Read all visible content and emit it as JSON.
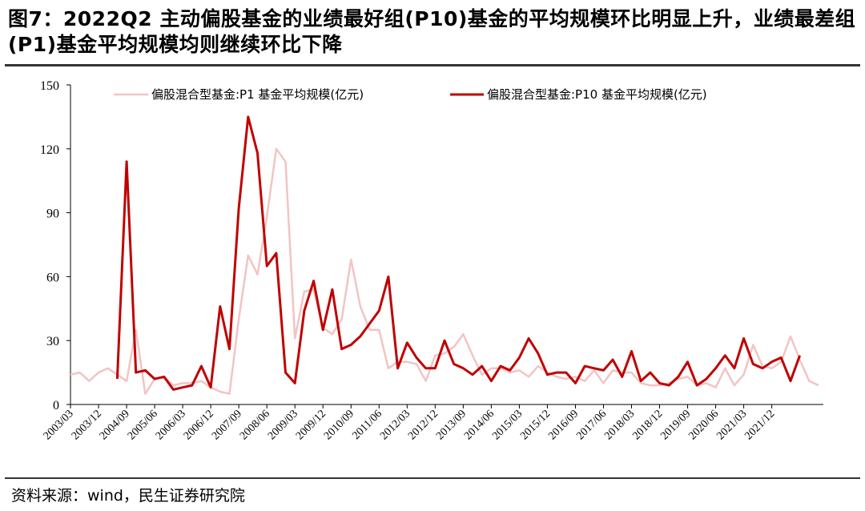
{
  "title": "图7：2022Q2  主动偏股基金的业绩最好组(P10)基金的平均规模环比明显上升，业绩最差组(P1)基金平均规模均则继续环比下降",
  "source": "资料来源：wind，民生证券研究院",
  "colors": {
    "p1": "#f2c4c4",
    "p10": "#c00000"
  },
  "chart_data": {
    "type": "line",
    "title": "图7：2022Q2  主动偏股基金的业绩最好组(P10)基金的平均规模环比明显上升，业绩最差组(P1)基金平均规模均则继续环比下降",
    "xlabel": "",
    "ylabel": "",
    "ylim": [
      0,
      150
    ],
    "yticks": [
      0,
      30,
      60,
      90,
      120,
      150
    ],
    "start": "2003/03",
    "step_months": 3,
    "xtick_labels": [
      "2003/03",
      "2003/12",
      "2004/09",
      "2005/06",
      "2006/03",
      "2006/12",
      "2007/09",
      "2008/06",
      "2009/03",
      "2009/12",
      "2010/09",
      "2011/06",
      "2012/03",
      "2012/12",
      "2013/09",
      "2014/06",
      "2015/03",
      "2015/12",
      "2016/09",
      "2017/06",
      "2018/03",
      "2018/12",
      "2019/09",
      "2020/06",
      "2021/03",
      "2021/12"
    ],
    "series": [
      {
        "name": "偏股混合型基金:P1 基金平均规模(亿元)",
        "color": "#f2c4c4",
        "values": [
          14,
          15,
          11,
          15,
          17,
          14,
          11,
          35,
          5,
          12,
          13,
          9,
          10,
          10,
          11,
          8,
          6,
          5,
          40,
          70,
          61,
          88,
          120,
          114,
          31,
          53,
          54,
          36,
          33,
          40,
          68,
          46,
          35,
          35,
          17,
          20,
          20,
          19,
          11,
          23,
          24,
          27,
          33,
          23,
          14,
          17,
          17,
          15,
          16,
          13,
          18,
          15,
          13,
          12,
          13,
          11,
          16,
          10,
          16,
          15,
          15,
          10,
          9,
          9,
          10,
          12,
          13,
          9,
          10,
          8,
          17,
          9,
          14,
          28,
          18,
          17,
          20,
          32,
          21,
          11,
          9
        ],
        "x_start_index": 0
      },
      {
        "name": "偏股混合型基金:P10 基金平均规模(亿元)",
        "color": "#c00000",
        "values": [
          12,
          114,
          15,
          16,
          12,
          13,
          7,
          8,
          9,
          18,
          8,
          46,
          26,
          92,
          135,
          118,
          65,
          71,
          15,
          10,
          44,
          58,
          35,
          54,
          26,
          28,
          32,
          38,
          44,
          60,
          17,
          29,
          22,
          17,
          17,
          30,
          19,
          17,
          14,
          18,
          11,
          18,
          16,
          22,
          31,
          24,
          14,
          15,
          15,
          10,
          18,
          17,
          16,
          21,
          13,
          25,
          11,
          15,
          10,
          9,
          13,
          20,
          9,
          12,
          17,
          23,
          17,
          31,
          19,
          17,
          20,
          22,
          11,
          23
        ],
        "x_start_index": 5
      }
    ]
  }
}
